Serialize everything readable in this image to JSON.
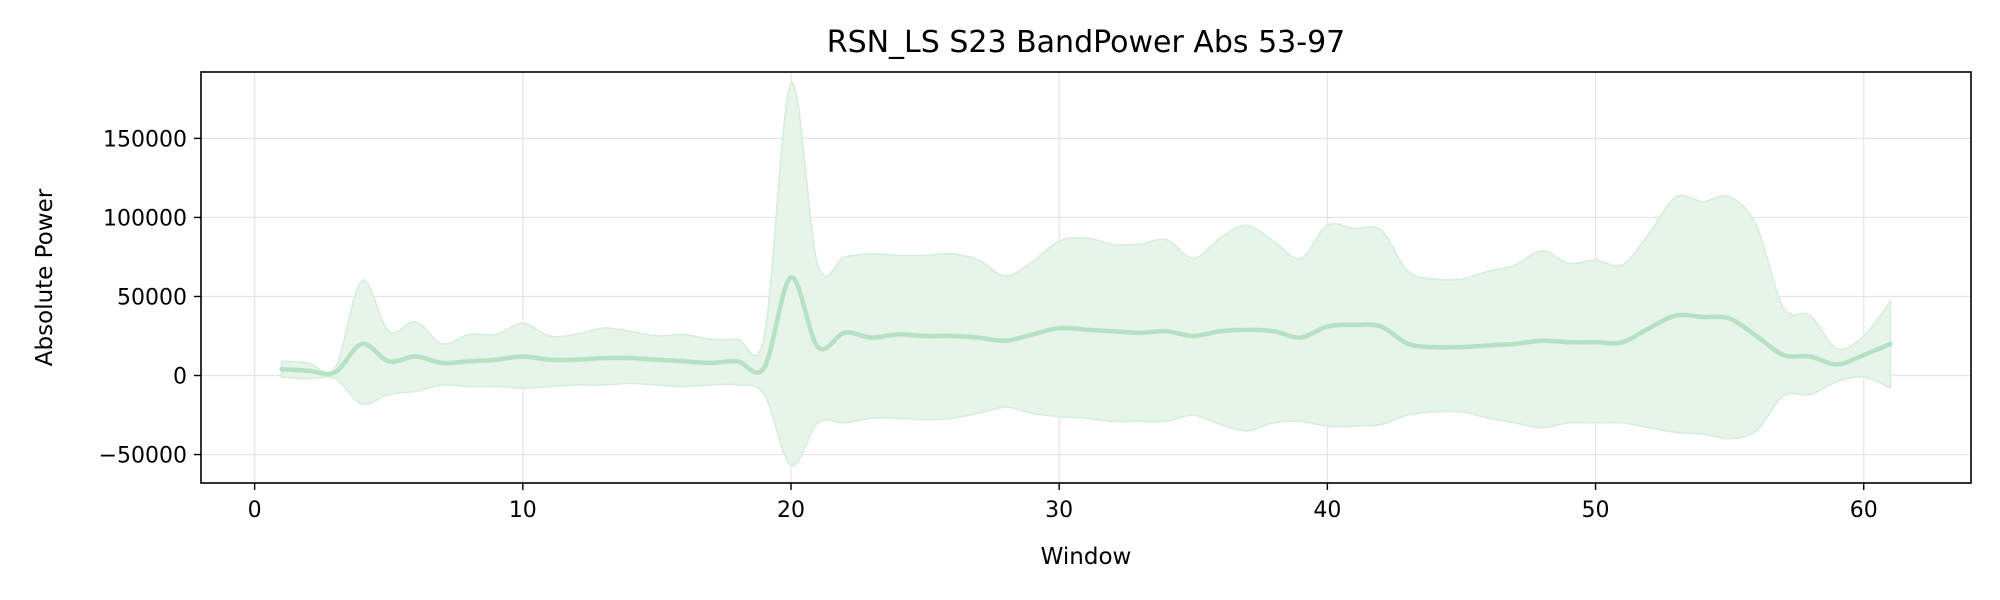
{
  "chart_data": {
    "type": "line",
    "title": "RSN_LS S23 BandPower Abs 53-97",
    "xlabel": "Window",
    "ylabel": "Absolute Power",
    "xlim": [
      -2,
      64
    ],
    "ylim": [
      -68000,
      192000
    ],
    "xticks": [
      0,
      10,
      20,
      30,
      40,
      50,
      60
    ],
    "yticks": [
      -50000,
      0,
      50000,
      100000,
      150000
    ],
    "ytick_labels": [
      "−50000",
      "0",
      "50000",
      "100000",
      "150000"
    ],
    "grid": true,
    "legend": "none",
    "colors": {
      "line": "#b7e1c5",
      "band": "#e6f4ea",
      "band_edge": "#d6ecdd",
      "grid": "#e5e5e5"
    },
    "series": [
      {
        "x": [
          1,
          2,
          3,
          4,
          5,
          6,
          7,
          8,
          9,
          10,
          11,
          12,
          13,
          14,
          15,
          16,
          17,
          18,
          19,
          20,
          21,
          22,
          23,
          24,
          25,
          26,
          27,
          28,
          29,
          30,
          31,
          32,
          33,
          34,
          35,
          36,
          37,
          38,
          39,
          40,
          41,
          42,
          43,
          44,
          45,
          46,
          47,
          48,
          49,
          50,
          51,
          52,
          53,
          54,
          55,
          56,
          57,
          58,
          59,
          60,
          61
        ],
        "mean": [
          4000,
          3000,
          2000,
          20000,
          9000,
          12000,
          8000,
          9000,
          10000,
          12000,
          10000,
          10000,
          11000,
          11000,
          10000,
          9000,
          8000,
          9000,
          5000,
          62000,
          18000,
          27000,
          24000,
          26000,
          25000,
          25000,
          24000,
          22000,
          26000,
          30000,
          29000,
          28000,
          27000,
          28000,
          25000,
          28000,
          29000,
          28000,
          24000,
          31000,
          32000,
          31000,
          20000,
          18000,
          18000,
          19000,
          20000,
          22000,
          21000,
          21000,
          21000,
          30000,
          38000,
          37000,
          36000,
          25000,
          13000,
          12000,
          7000,
          13000,
          20000
        ],
        "upper": [
          9000,
          8000,
          5000,
          60000,
          28000,
          34000,
          20000,
          26000,
          26000,
          33000,
          25000,
          26000,
          30000,
          28000,
          25000,
          26000,
          23000,
          23000,
          25000,
          185000,
          70000,
          75000,
          77000,
          76000,
          76000,
          77000,
          73000,
          63000,
          72000,
          85000,
          87000,
          83000,
          83000,
          86000,
          74000,
          87000,
          95000,
          85000,
          74000,
          95000,
          93000,
          92000,
          66000,
          61000,
          61000,
          66000,
          70000,
          79000,
          71000,
          73000,
          70000,
          90000,
          113000,
          110000,
          113000,
          95000,
          43000,
          38000,
          17000,
          25000,
          47000
        ],
        "lower": [
          -1000,
          -2000,
          -2000,
          -18000,
          -12000,
          -10000,
          -6000,
          -7000,
          -7000,
          -8000,
          -7000,
          -6000,
          -6000,
          -5000,
          -6000,
          -7000,
          -6000,
          -6000,
          -12000,
          -57000,
          -30000,
          -30000,
          -27000,
          -27000,
          -28000,
          -27000,
          -24000,
          -20000,
          -24000,
          -26000,
          -27000,
          -29000,
          -29000,
          -29000,
          -25000,
          -31000,
          -35000,
          -30000,
          -29000,
          -32000,
          -32000,
          -31000,
          -25000,
          -23000,
          -23000,
          -27000,
          -30000,
          -33000,
          -30000,
          -30000,
          -30000,
          -33000,
          -36000,
          -37000,
          -40000,
          -35000,
          -13000,
          -12000,
          -4000,
          -1000,
          -8000
        ]
      }
    ]
  }
}
